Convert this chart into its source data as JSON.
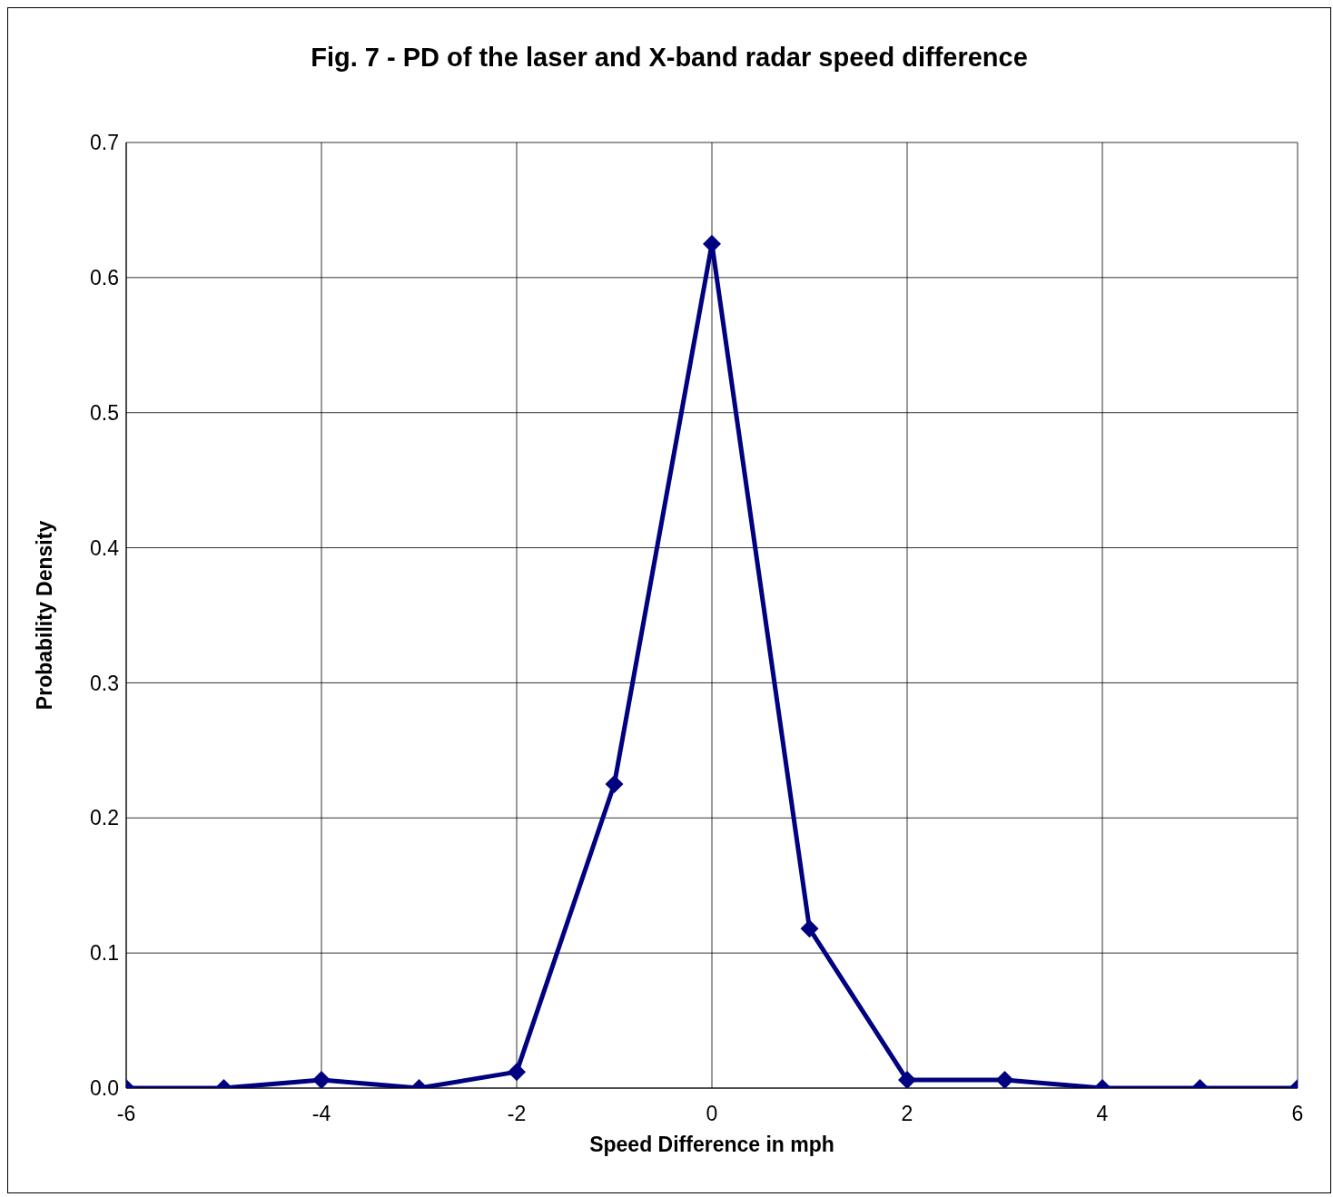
{
  "chart_data": {
    "type": "line",
    "title": "Fig. 7 - PD of the laser and X-band radar speed difference",
    "xlabel": "Speed Difference in mph",
    "ylabel": "Probability Density",
    "x": [
      -6,
      -5,
      -4,
      -3,
      -2,
      -1,
      0,
      1,
      2,
      3,
      4,
      5,
      6
    ],
    "series": [
      {
        "color": "#000080",
        "values": [
          0,
          0,
          0.006,
          0,
          0.012,
          0.225,
          0.625,
          0.118,
          0.006,
          0.006,
          0,
          0,
          0
        ]
      }
    ],
    "xlim": [
      -6,
      6
    ],
    "xticks": [
      -6,
      -4,
      -2,
      0,
      2,
      4,
      6
    ],
    "ylim": [
      0,
      0.7
    ],
    "yticks": [
      {
        "value": 0,
        "label": "0.0"
      },
      0.1,
      0.2,
      0.3,
      0.4,
      0.5,
      0.6,
      0.7
    ],
    "grid": true,
    "marker": "diamond",
    "line_style": "solid"
  }
}
